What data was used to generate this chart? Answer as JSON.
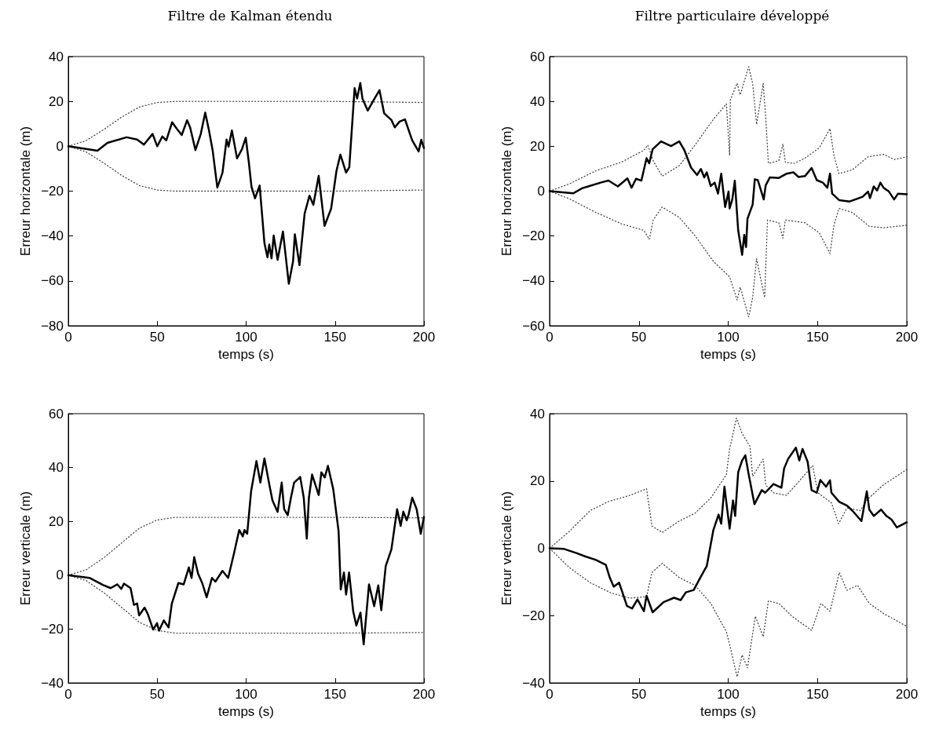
{
  "chart_data": [
    {
      "type": "line",
      "title": "Filtre de Kalman étendu",
      "xlabel": "temps (s)",
      "ylabel": "Erreur horizontale (m)",
      "xlim": [
        0,
        200
      ],
      "xticks": [
        0,
        50,
        100,
        150,
        200
      ],
      "ylim": [
        -80,
        40
      ],
      "yticks": [
        -80,
        -60,
        -40,
        -20,
        0,
        20,
        40
      ],
      "grid": false,
      "marker": "none",
      "series": [
        {
          "color": "#000000",
          "line_style": "solid",
          "x": [
            0,
            16.4,
            22,
            32.8,
            38.7,
            42.5,
            47.4,
            50,
            52.9,
            55.1,
            58.4,
            61,
            63.8,
            66.8,
            68.5,
            71.5,
            74.5,
            77,
            79,
            81.2,
            83.8,
            86.7,
            89,
            90.1,
            92,
            94.9,
            97.6,
            99.8,
            101.6,
            103,
            105,
            107.6,
            110.3,
            112,
            113,
            114.3,
            115.5,
            117.7,
            120.7,
            124,
            126.4,
            127.4,
            130,
            132.9,
            135.6,
            137.8,
            140.8,
            144.1,
            147.8,
            150.8,
            153,
            156.2,
            158,
            161,
            162.4,
            164.2,
            165.4,
            168.4,
            172,
            175,
            177.6,
            181.8,
            183.6,
            186.3,
            189.3,
            193.4,
            197,
            198.5,
            200
          ],
          "values": [
            0,
            -2,
            1.5,
            4,
            3,
            0.7,
            5.5,
            0,
            4.4,
            2.6,
            10.7,
            7.8,
            5,
            11.6,
            8.4,
            -1.7,
            5.5,
            15,
            7.5,
            -2,
            -18.4,
            -11.8,
            3,
            -0.2,
            7,
            -5.4,
            -1.4,
            3.8,
            -7.7,
            -18,
            -23.2,
            -17.5,
            -43.2,
            -49.5,
            -43.8,
            -50,
            -39.8,
            -50.6,
            -38,
            -61.3,
            -51.2,
            -39.2,
            -53,
            -30,
            -22,
            -26.1,
            -13.2,
            -35.5,
            -27.8,
            -11,
            -3.7,
            -11.7,
            -9.4,
            25.9,
            21.3,
            28.2,
            21.3,
            15.9,
            21,
            25,
            14.7,
            11.6,
            8.4,
            11,
            12,
            2.6,
            -2.3,
            2.9,
            -0.8
          ]
        },
        {
          "color": "#444444",
          "line_style": "dotted",
          "x": [
            0,
            10,
            20,
            30,
            40,
            50,
            60,
            100,
            150,
            200
          ],
          "values": [
            0,
            2.5,
            7.5,
            13,
            17.5,
            19.5,
            20,
            20,
            20,
            19.5
          ]
        },
        {
          "color": "#444444",
          "line_style": "dotted",
          "x": [
            0,
            10,
            20,
            30,
            40,
            50,
            60,
            100,
            150,
            200
          ],
          "values": [
            0,
            -2.5,
            -7.5,
            -13,
            -17.5,
            -19.5,
            -20,
            -20,
            -20,
            -19.5
          ]
        }
      ]
    },
    {
      "type": "line",
      "title": "Filtre particulaire développé",
      "xlabel": "temps (s)",
      "ylabel": "Erreur horizontale (m)",
      "xlim": [
        0,
        200
      ],
      "xticks": [
        0,
        50,
        100,
        150,
        200
      ],
      "ylim": [
        -60,
        60
      ],
      "yticks": [
        -60,
        -40,
        -20,
        0,
        20,
        40,
        60
      ],
      "grid": false,
      "marker": "none",
      "series": [
        {
          "color": "#000000",
          "line_style": "solid",
          "x": [
            0,
            13.2,
            18.3,
            28.6,
            33,
            38.2,
            43.6,
            45.9,
            48.4,
            51.4,
            54.3,
            55.8,
            57.7,
            62.4,
            68,
            72.6,
            75.5,
            79.2,
            82.6,
            84.7,
            86.6,
            88,
            90.2,
            92.4,
            94.3,
            96.1,
            98.3,
            100.2,
            100.8,
            102.3,
            103.7,
            105.6,
            107.8,
            109,
            110,
            110.8,
            113.7,
            114.9,
            116.6,
            119.9,
            121,
            123.3,
            128.4,
            132.8,
            136.5,
            139.4,
            143,
            146.7,
            149.6,
            153,
            155.5,
            157,
            158.2,
            162.1,
            168,
            175.3,
            178.3,
            179.4,
            181.5,
            183.4,
            185.2,
            187,
            190,
            192.9,
            195.1,
            200
          ],
          "values": [
            0,
            -1,
            1.3,
            3.8,
            4.7,
            2.1,
            5.7,
            1.5,
            5.5,
            4.7,
            14.7,
            12.4,
            18.7,
            22.2,
            20.1,
            22.2,
            18.2,
            10.5,
            7.2,
            9.9,
            6.1,
            8.4,
            2.3,
            3.8,
            -1.1,
            7.8,
            -7.1,
            -0.2,
            -7.7,
            -3.7,
            4.6,
            -17.5,
            -28.4,
            -19.5,
            -24.9,
            -12.3,
            -6,
            5.3,
            4.9,
            -3.7,
            2.6,
            6.1,
            5.9,
            7.8,
            8.4,
            6.3,
            6.7,
            10.3,
            4.9,
            3.8,
            1.5,
            7.8,
            -1.1,
            -4,
            -4.6,
            -2.5,
            -0.2,
            -3.1,
            2.1,
            0.3,
            3.8,
            1.5,
            -0.2,
            -3.7,
            -1.1,
            -1.4
          ]
        },
        {
          "color": "#444444",
          "line_style": "dotted",
          "x": [
            0,
            11,
            25.7,
            40.4,
            52.8,
            55,
            58,
            63,
            72.6,
            81.4,
            91.7,
            99,
            100.8,
            101.2,
            105,
            106.7,
            111.5,
            113.7,
            115.9,
            119.6,
            121,
            122.5,
            128.4,
            130.6,
            132,
            137.2,
            143,
            151,
            157,
            159.2,
            162,
            169.5,
            178.3,
            187,
            193,
            200
          ],
          "values": [
            0,
            3.2,
            9,
            13,
            18.2,
            20.5,
            13.6,
            6.7,
            11.3,
            20.5,
            32,
            38.9,
            15.9,
            40.6,
            48.1,
            42.9,
            55.5,
            48,
            29.7,
            48,
            33,
            12.4,
            13.6,
            21,
            12.8,
            12.4,
            14.7,
            19.3,
            27.9,
            15.9,
            7.8,
            9.5,
            15.3,
            16.4,
            14.1,
            15.3
          ]
        },
        {
          "color": "#444444",
          "line_style": "dotted",
          "x": [
            0,
            11,
            25.7,
            40.4,
            52.8,
            55.8,
            58,
            63,
            72.6,
            81.4,
            91.7,
            100.8,
            105,
            106.7,
            111.5,
            113.7,
            115.9,
            120.4,
            122,
            128.4,
            130.6,
            132,
            143,
            151,
            157,
            159.2,
            162,
            169.5,
            179,
            187,
            200
          ],
          "values": [
            0,
            -3.4,
            -9.4,
            -14.6,
            -17.5,
            -21.5,
            -12.9,
            -7.1,
            -11.7,
            -19.8,
            -31.3,
            -38.2,
            -48.5,
            -42.8,
            -56,
            -47.4,
            -30.1,
            -47.4,
            -12.9,
            -14.1,
            -21,
            -12.9,
            -14.1,
            -18.6,
            -27.8,
            -15.2,
            -7.7,
            -9.5,
            -15.7,
            -16.3,
            -15.2
          ]
        }
      ]
    },
    {
      "type": "line",
      "xlabel": "temps (s)",
      "ylabel": "Erreur verticale (m)",
      "xlim": [
        0,
        200
      ],
      "xticks": [
        0,
        50,
        100,
        150,
        200
      ],
      "ylim": [
        -40,
        60
      ],
      "yticks": [
        -40,
        -20,
        0,
        20,
        40,
        60
      ],
      "grid": false,
      "marker": "none",
      "series": [
        {
          "color": "#000000",
          "line_style": "solid",
          "x": [
            0,
            11.9,
            19.4,
            23.8,
            27.6,
            29.8,
            31.3,
            35,
            36.9,
            38.7,
            39.8,
            42.9,
            44.7,
            47.7,
            49.9,
            51,
            53.7,
            56.4,
            58.2,
            61.9,
            64.9,
            67.8,
            69.3,
            70.8,
            73,
            75.3,
            77.8,
            80.8,
            82.7,
            86.7,
            89.9,
            93.2,
            96.1,
            98.1,
            99.1,
            100.6,
            102.8,
            105.8,
            108,
            110.3,
            113.2,
            114.8,
            117.7,
            120,
            121.4,
            123.4,
            125.2,
            127,
            130.4,
            132.4,
            134.1,
            135.3,
            137.1,
            140.8,
            142.3,
            144.2,
            146,
            149,
            152,
            153.2,
            155,
            156.2,
            157.9,
            160.2,
            162,
            164.3,
            166.1,
            169.1,
            172,
            174.3,
            176,
            178.5,
            181.7,
            184.9,
            186.9,
            188.4,
            190.3,
            191.4,
            193.4,
            195.9,
            198.2,
            200
          ],
          "values": [
            0,
            -1,
            -3.6,
            -4.8,
            -3.4,
            -5.1,
            -3.1,
            -4.8,
            -11,
            -10.5,
            -14.9,
            -12,
            -14.4,
            -20.2,
            -17.8,
            -20.6,
            -16.8,
            -19.4,
            -10.6,
            -2.9,
            -3.4,
            2.9,
            -1,
            6.7,
            0.5,
            -2.9,
            -8.2,
            -1,
            -2.4,
            1.6,
            -1,
            8.2,
            16.8,
            14.4,
            16.8,
            15.4,
            31.2,
            42.4,
            34.4,
            43.4,
            33.1,
            27.8,
            23.5,
            34.4,
            24.5,
            22.3,
            28.8,
            34.4,
            36.5,
            28.8,
            13.6,
            28.8,
            37.4,
            29.8,
            38.2,
            36.3,
            40.6,
            31.9,
            16.3,
            -5.3,
            1,
            -7.2,
            1,
            -13.4,
            -18.7,
            -13.9,
            -25.7,
            -3.4,
            -11.5,
            -3.8,
            -13,
            3.4,
            9.6,
            24.5,
            18.3,
            23.6,
            20.4,
            22.6,
            28.8,
            24.5,
            15.4,
            21.6
          ]
        },
        {
          "color": "#444444",
          "line_style": "dotted",
          "x": [
            0,
            10,
            20,
            30,
            40,
            50,
            60,
            100,
            150,
            200
          ],
          "values": [
            0,
            2,
            6.5,
            12,
            17.5,
            20.5,
            21.5,
            21.5,
            21.5,
            21.3
          ]
        },
        {
          "color": "#444444",
          "line_style": "dotted",
          "x": [
            0,
            10,
            20,
            30,
            40,
            50,
            60,
            100,
            150,
            200
          ],
          "values": [
            0,
            -2,
            -6.5,
            -12,
            -17.5,
            -20.5,
            -21.5,
            -21.5,
            -21.5,
            -21.3
          ]
        }
      ]
    },
    {
      "type": "line",
      "xlabel": "temps (s)",
      "ylabel": "Erreur verticale (m)",
      "xlim": [
        0,
        200
      ],
      "xticks": [
        0,
        50,
        100,
        150,
        200
      ],
      "ylim": [
        -40,
        40
      ],
      "yticks": [
        -40,
        -20,
        0,
        20,
        40
      ],
      "grid": false,
      "marker": "none",
      "series": [
        {
          "color": "#000000",
          "line_style": "solid",
          "x": [
            0,
            8.1,
            15.4,
            19.8,
            25.7,
            30,
            31.5,
            33.7,
            35.9,
            38.9,
            40.4,
            43.3,
            46.2,
            49.2,
            52.8,
            54.3,
            57.7,
            63.8,
            69.7,
            73.4,
            76.3,
            80.7,
            84.4,
            88,
            91.7,
            94.6,
            96.1,
            97.9,
            100.8,
            102.7,
            103.9,
            105.6,
            107.8,
            109.6,
            111.5,
            114.7,
            118.8,
            120.7,
            125.4,
            129.8,
            131.3,
            133.5,
            137.9,
            139.8,
            141.6,
            144.5,
            146.7,
            149.6,
            151.6,
            154.8,
            157,
            157.8,
            162.2,
            166.5,
            169.5,
            174.6,
            177.6,
            179,
            181.5,
            185.6,
            188.6,
            191.5,
            194.4,
            200
          ],
          "values": [
            0,
            -0.2,
            -1.5,
            -2.4,
            -3.4,
            -4.5,
            -4.9,
            -8.7,
            -11.4,
            -10.2,
            -12.5,
            -17.1,
            -17.9,
            -15.2,
            -18.7,
            -14.1,
            -19,
            -16,
            -14.7,
            -15.4,
            -13.1,
            -12.4,
            -8.7,
            -5.3,
            5.4,
            10,
            7.3,
            18.3,
            5.8,
            14.2,
            9.6,
            22.6,
            26.1,
            27.6,
            21.9,
            13.1,
            17.3,
            16.5,
            19.1,
            18,
            23.7,
            26.5,
            29.9,
            26.1,
            29.5,
            25.7,
            17.3,
            16.5,
            20.3,
            18.3,
            20.2,
            16.5,
            13.8,
            12.7,
            11.2,
            8.1,
            16.9,
            11.5,
            9.6,
            11.5,
            9.6,
            8.5,
            6.2,
            7.7
          ]
        },
        {
          "color": "#444444",
          "line_style": "dotted",
          "x": [
            0,
            11,
            22.7,
            33,
            44.8,
            54.3,
            57.3,
            63.1,
            72.6,
            81.4,
            90.3,
            99,
            100.8,
            104.6,
            107.8,
            112.2,
            113.7,
            119.6,
            121,
            125.4,
            132.6,
            139.2,
            142.9,
            147.3,
            150.2,
            157.8,
            161.8,
            166.5,
            173.9,
            178.3,
            187,
            200
          ],
          "values": [
            0,
            5,
            11.2,
            13.9,
            15.7,
            17.7,
            6.6,
            4.7,
            8.1,
            10.4,
            15,
            21.9,
            29.5,
            38.7,
            34.1,
            30.3,
            21.4,
            26.5,
            18.8,
            16.5,
            15.7,
            19.6,
            21.9,
            24.6,
            16.5,
            13.5,
            7.3,
            12,
            11.2,
            14.7,
            18.9,
            23.4
          ]
        },
        {
          "color": "#444444",
          "line_style": "dotted",
          "x": [
            0,
            11,
            22.7,
            34.5,
            44.8,
            54.3,
            57.3,
            63.1,
            72.6,
            81.4,
            90.3,
            99,
            100.8,
            105,
            107.8,
            110.8,
            115.2,
            119.6,
            122.5,
            128.4,
            135.7,
            146.7,
            151.9,
            157,
            162.2,
            166.5,
            172.4,
            179,
            187,
            200
          ],
          "values": [
            0,
            -5.7,
            -10.2,
            -13.3,
            -14.8,
            -14.4,
            -7.2,
            -4.5,
            -8.7,
            -11,
            -16.4,
            -24.8,
            -28.6,
            -38.2,
            -31.7,
            -35.5,
            -20.2,
            -26.3,
            -15.6,
            -16.4,
            -20.2,
            -24.4,
            -16.4,
            -18.7,
            -7.2,
            -12.5,
            -11,
            -16.4,
            -19.4,
            -23.2
          ]
        }
      ]
    }
  ]
}
